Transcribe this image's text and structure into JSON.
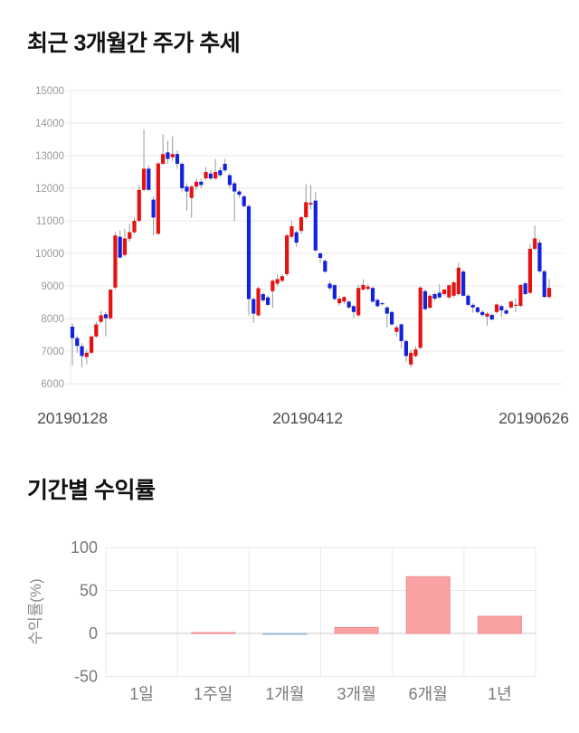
{
  "price_section": {
    "title": "최근 3개월간 주가 추세"
  },
  "returns_section": {
    "title": "기간별 수익률"
  },
  "chart_data": [
    {
      "type": "candlestick",
      "title": "최근 3개월간 주가 추세",
      "ylim": [
        6000,
        15000
      ],
      "y_ticks": [
        15000,
        14000,
        13000,
        12000,
        11000,
        10000,
        9000,
        8000,
        7000,
        6000
      ],
      "x_tick_labels": [
        "20190128",
        "20190412",
        "20190626"
      ],
      "grid": true,
      "colors": {
        "up": "#e61212",
        "down": "#1322dd",
        "wick": "#999999",
        "grid": "#e9e9e9",
        "y_tick_label": "#9a9a9a",
        "x_tick_label": "#4d4d4d"
      },
      "candles_format": [
        "open",
        "high",
        "low",
        "close"
      ],
      "candles": [
        [
          7750,
          7850,
          6550,
          7400
        ],
        [
          7400,
          7480,
          6950,
          7160
        ],
        [
          7150,
          7250,
          6500,
          6850
        ],
        [
          6820,
          7050,
          6600,
          6950
        ],
        [
          6950,
          7480,
          6900,
          7450
        ],
        [
          7450,
          7900,
          7400,
          7820
        ],
        [
          7900,
          8230,
          7830,
          8100
        ],
        [
          8130,
          8200,
          7450,
          8010
        ],
        [
          8010,
          8900,
          7960,
          8890
        ],
        [
          8950,
          10650,
          8890,
          10550
        ],
        [
          10510,
          10700,
          9850,
          9870
        ],
        [
          9950,
          10750,
          9900,
          10460
        ],
        [
          10450,
          10900,
          10350,
          10650
        ],
        [
          10650,
          11100,
          10600,
          11000
        ],
        [
          11000,
          12100,
          10950,
          11950
        ],
        [
          11950,
          13800,
          11900,
          12600
        ],
        [
          12600,
          12700,
          11900,
          11950
        ],
        [
          11650,
          11750,
          10550,
          11100
        ],
        [
          10600,
          12800,
          10570,
          12760
        ],
        [
          12750,
          13650,
          12700,
          13050
        ],
        [
          13100,
          13450,
          12750,
          12900
        ],
        [
          12950,
          13600,
          12850,
          13050
        ],
        [
          13050,
          13150,
          12600,
          12750
        ],
        [
          12750,
          12800,
          11900,
          12000
        ],
        [
          12050,
          12150,
          11300,
          11900
        ],
        [
          11700,
          12100,
          11100,
          12050
        ],
        [
          12050,
          12300,
          11950,
          12200
        ],
        [
          12200,
          12300,
          12000,
          12100
        ],
        [
          12300,
          12650,
          12250,
          12500
        ],
        [
          12450,
          12550,
          12250,
          12300
        ],
        [
          12300,
          12900,
          12250,
          12500
        ],
        [
          12550,
          12650,
          12350,
          12400
        ],
        [
          12750,
          12900,
          12500,
          12550
        ],
        [
          12400,
          12450,
          12000,
          12100
        ],
        [
          12150,
          12200,
          11000,
          11900
        ],
        [
          11900,
          11950,
          11700,
          11800
        ],
        [
          11750,
          11800,
          11400,
          11450
        ],
        [
          11450,
          11500,
          8100,
          8600
        ],
        [
          8600,
          8650,
          7860,
          8150
        ],
        [
          8100,
          8980,
          8050,
          8930
        ],
        [
          8750,
          8800,
          8500,
          8560
        ],
        [
          8650,
          8700,
          8380,
          8420
        ],
        [
          8840,
          9200,
          8330,
          9160
        ],
        [
          9070,
          9350,
          9000,
          9210
        ],
        [
          9160,
          9350,
          9100,
          9300
        ],
        [
          9360,
          10600,
          9300,
          10550
        ],
        [
          10510,
          11000,
          10450,
          10830
        ],
        [
          10650,
          10700,
          10200,
          10330
        ],
        [
          10690,
          11150,
          10600,
          11110
        ],
        [
          11110,
          12130,
          11050,
          11570
        ],
        [
          11500,
          12100,
          11350,
          11550
        ],
        [
          11620,
          11890,
          10050,
          10090
        ],
        [
          10000,
          10050,
          9700,
          9860
        ],
        [
          9770,
          9820,
          9400,
          9440
        ],
        [
          9070,
          9150,
          8850,
          8930
        ],
        [
          9025,
          9060,
          8550,
          8600
        ],
        [
          8470,
          8700,
          8400,
          8610
        ],
        [
          8520,
          8700,
          8450,
          8660
        ],
        [
          8520,
          8560,
          8300,
          8340
        ],
        [
          8380,
          8420,
          8010,
          8200
        ],
        [
          8100,
          9030,
          8050,
          8940
        ],
        [
          8890,
          9210,
          8850,
          9030
        ],
        [
          8910,
          9050,
          8850,
          8980
        ],
        [
          8940,
          8980,
          8480,
          8520
        ],
        [
          8570,
          8620,
          8330,
          8380
        ],
        [
          8470,
          8520,
          8400,
          8440
        ],
        [
          8340,
          8380,
          7730,
          8150
        ],
        [
          8200,
          8240,
          7780,
          7820
        ],
        [
          7590,
          7800,
          7450,
          7730
        ],
        [
          7820,
          7850,
          7080,
          7310
        ],
        [
          7310,
          7350,
          6680,
          6850
        ],
        [
          6590,
          7050,
          6500,
          6950
        ],
        [
          6850,
          7150,
          6800,
          7050
        ],
        [
          7100,
          9000,
          7050,
          8950
        ],
        [
          8840,
          8900,
          8250,
          8290
        ],
        [
          8330,
          8750,
          8300,
          8700
        ],
        [
          8750,
          8800,
          8550,
          8610
        ],
        [
          8790,
          9050,
          8600,
          8650
        ],
        [
          8750,
          8900,
          8700,
          8890
        ],
        [
          8650,
          9050,
          8600,
          9020
        ],
        [
          8700,
          9150,
          8650,
          9110
        ],
        [
          8750,
          9710,
          8700,
          9560
        ],
        [
          9440,
          9500,
          8680,
          8700
        ],
        [
          8700,
          8760,
          8380,
          8420
        ],
        [
          8420,
          8470,
          8180,
          8340
        ],
        [
          8340,
          8380,
          8150,
          8200
        ],
        [
          8200,
          8250,
          8060,
          8110
        ],
        [
          8060,
          8200,
          7780,
          8150
        ],
        [
          8110,
          8150,
          7950,
          7970
        ],
        [
          8200,
          8460,
          8150,
          8430
        ],
        [
          8380,
          8420,
          8050,
          8250
        ],
        [
          8250,
          8290,
          8120,
          8150
        ],
        [
          8340,
          8550,
          8300,
          8520
        ],
        [
          8400,
          8620,
          8200,
          8420
        ],
        [
          8390,
          9060,
          8350,
          9030
        ],
        [
          9080,
          9130,
          8720,
          8750
        ],
        [
          8790,
          10280,
          8750,
          10140
        ],
        [
          10140,
          10860,
          10080,
          10460
        ],
        [
          10330,
          10430,
          9400,
          9450
        ],
        [
          9450,
          9500,
          8640,
          8660
        ],
        [
          8660,
          9220,
          8620,
          8940
        ]
      ]
    },
    {
      "type": "bar",
      "title": "기간별 수익률",
      "categories": [
        "1일",
        "1주일",
        "1개월",
        "3개월",
        "6개월",
        "1년"
      ],
      "values": [
        0,
        1,
        -1,
        7,
        66,
        20
      ],
      "ylabel": "수익률(%)",
      "y_ticks": [
        100,
        50,
        0,
        -50
      ],
      "ylim": [
        -50,
        100
      ],
      "grid": true,
      "legend": "none",
      "colors": {
        "positive_fill": "#f9a2a4",
        "positive_border": "#f08a8d",
        "negative_fill": "#aacbe4",
        "negative_border": "#8fb6d6",
        "grid": "#e9e9e9",
        "zero_line": "#c8c8c8",
        "tick_label": "#7a7a7a",
        "axis_title": "#8a8a8a"
      }
    }
  ]
}
